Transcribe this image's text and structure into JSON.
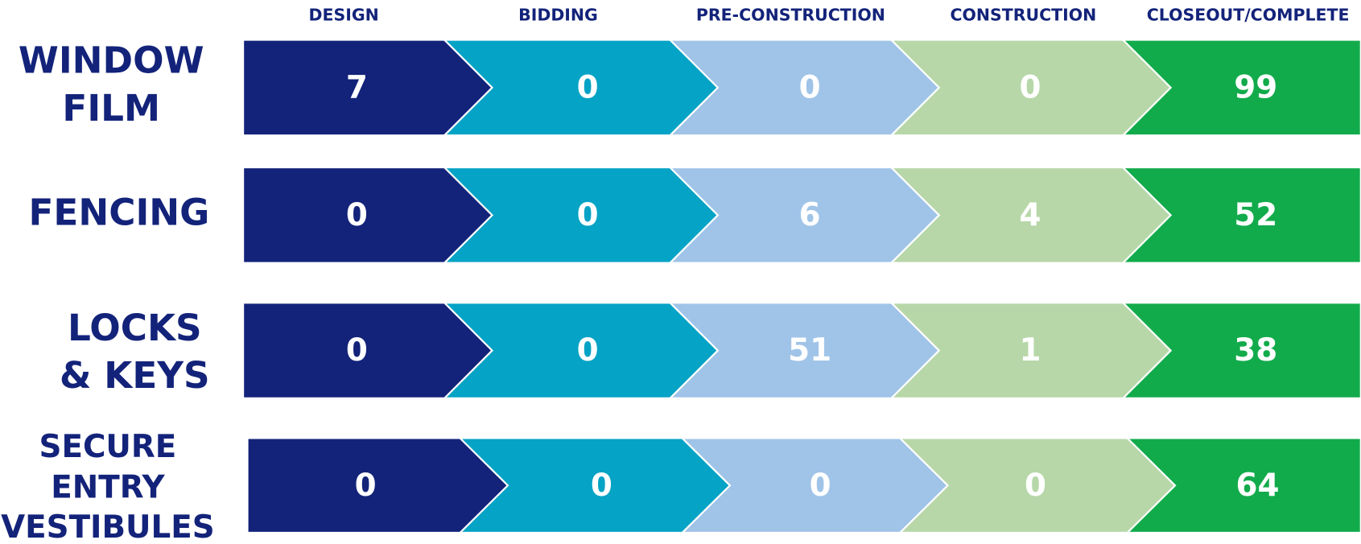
{
  "stages": [
    "DESIGN",
    "BIDDING",
    "PRE-CONSTRUCTION",
    "CONSTRUCTION",
    "CLOSEOUT/COMPLETE"
  ],
  "colors": [
    "#13237a",
    "#05a3c5",
    "#a0c4e8",
    "#b7d7a8",
    "#12ab4b"
  ],
  "rows": [
    {
      "label": [
        "WINDOW",
        "FILM"
      ],
      "counts": [
        7,
        0,
        0,
        0,
        99
      ]
    },
    {
      "label": [
        "FENCING"
      ],
      "counts": [
        0,
        0,
        6,
        4,
        52
      ]
    },
    {
      "label": [
        "LOCKS",
        "& KEYS"
      ],
      "counts": [
        0,
        0,
        51,
        1,
        38
      ]
    },
    {
      "label": [
        "SECURE",
        "ENTRY",
        "VESTIBULES"
      ],
      "counts": [
        0,
        0,
        0,
        0,
        64
      ]
    }
  ]
}
